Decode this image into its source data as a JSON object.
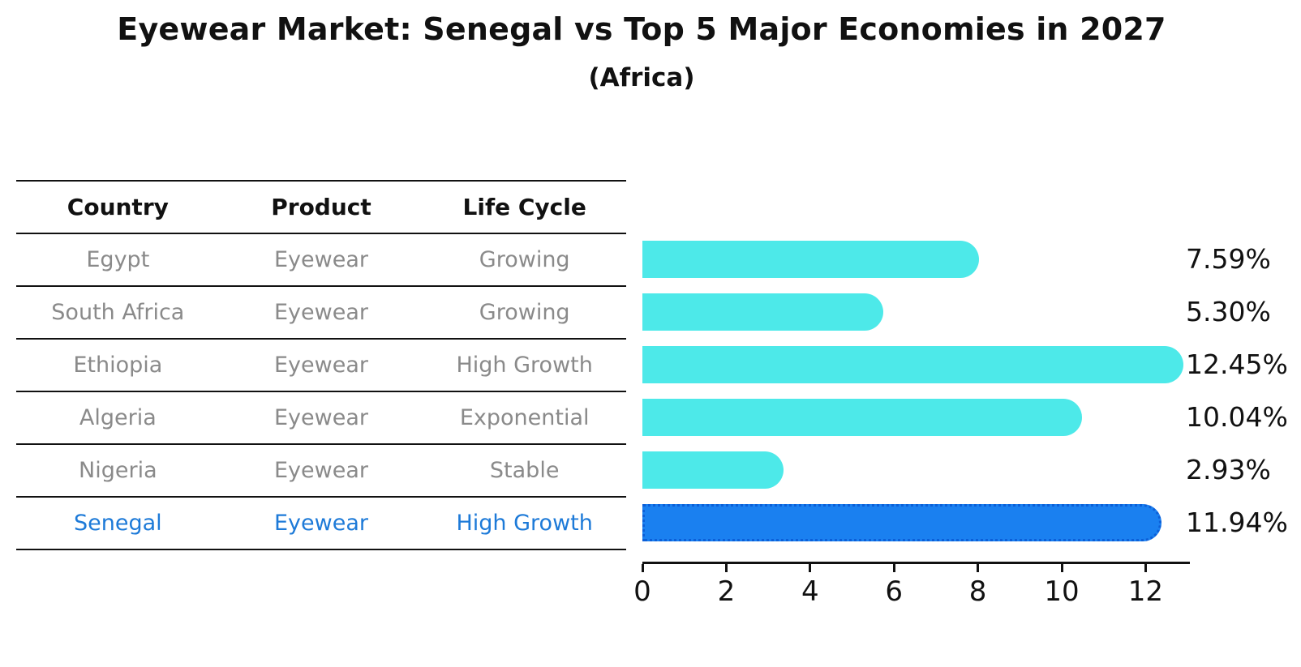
{
  "title": "Eyewear Market: Senegal vs Top 5 Major Economies in 2027",
  "subtitle": "(Africa)",
  "table": {
    "headers": [
      "Country",
      "Product",
      "Life Cycle"
    ],
    "rows": [
      {
        "country": "Egypt",
        "product": "Eyewear",
        "life_cycle": "Growing",
        "highlight": false
      },
      {
        "country": "South Africa",
        "product": "Eyewear",
        "life_cycle": "Growing",
        "highlight": false
      },
      {
        "country": "Ethiopia",
        "product": "Eyewear",
        "life_cycle": "High Growth",
        "highlight": false
      },
      {
        "country": "Algeria",
        "product": "Eyewear",
        "life_cycle": "Exponential",
        "highlight": false
      },
      {
        "country": "Nigeria",
        "product": "Eyewear",
        "life_cycle": "Stable",
        "highlight": false
      },
      {
        "country": "Senegal",
        "product": "Eyewear",
        "life_cycle": "High Growth",
        "highlight": true
      }
    ]
  },
  "chart_data": {
    "type": "bar",
    "orientation": "horizontal",
    "title": "Eyewear Market: Senegal vs Top 5 Major Economies in 2027",
    "subtitle": "(Africa)",
    "categories": [
      "Egypt",
      "South Africa",
      "Ethiopia",
      "Algeria",
      "Nigeria",
      "Senegal"
    ],
    "values": [
      7.59,
      5.3,
      12.45,
      10.04,
      2.93,
      11.94
    ],
    "value_labels": [
      "7.59%",
      "5.30%",
      "12.45%",
      "10.04%",
      "2.93%",
      "11.94%"
    ],
    "x_ticks": [
      0,
      2,
      4,
      6,
      8,
      10,
      12
    ],
    "xlim": [
      0,
      13.05
    ],
    "highlight_category": "Senegal",
    "legend": "none",
    "grid": false
  },
  "colors": {
    "bar_default": "#4DE9E9",
    "bar_highlight": "#1A80F0",
    "bar_highlight_border": "#0C5FD8",
    "highlight_text": "#1D7AD8",
    "row_text": "#8A8A8A",
    "ink": "#111111"
  }
}
